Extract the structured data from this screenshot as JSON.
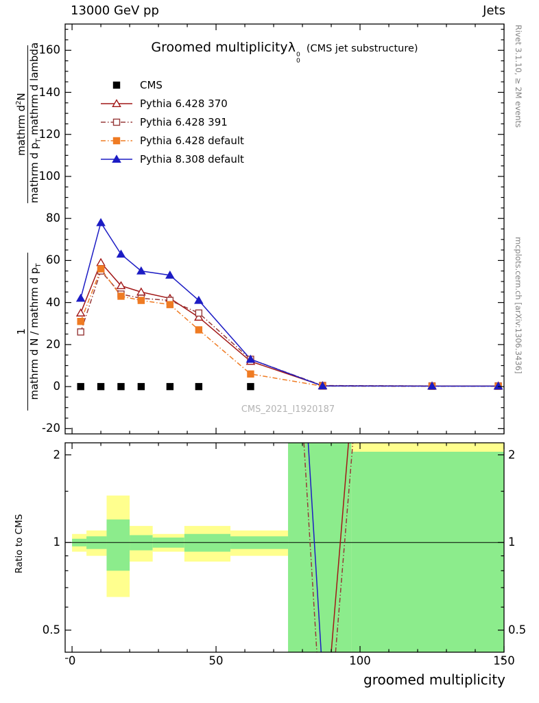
{
  "header": {
    "left": "13000 GeV pp",
    "right": "Jets"
  },
  "title": {
    "text": "Groomed multiplicity",
    "lambda": "λ",
    "sub": "0",
    "sup": "0",
    "suffix": "(CMS jet substructure)"
  },
  "watermark": "CMS_2021_I1920187",
  "side": {
    "top": "Rivet 3.1.10, ≥ 2M events",
    "bottom": "mcplots.cern.ch [arXiv:1306.3436]"
  },
  "ylabel": {
    "f2_num_a": "mathrm d",
    "f2_num_sup": "2",
    "f2_num_b": "N",
    "f2_den_a": "mathrm d p",
    "f2_den_sub": "T",
    "f2_den_b": " mathrm d lambda",
    "f1_num": "1",
    "f1_den_a": "mathrm d N / mathrm d p",
    "f1_den_sub": "T"
  },
  "ratio_label": "Ratio to CMS",
  "xlabel": "groomed multiplicity",
  "chart_data": {
    "type": "line",
    "title": "Groomed multiplicity λ_0^0 (CMS jet substructure)",
    "xlabel": "groomed multiplicity",
    "ylabel": "1/(dN/dp_T) d²N/(dp_T dλ)",
    "xlim": [
      -2.4,
      150
    ],
    "main": {
      "ylim": [
        -22.5,
        172.5
      ],
      "yticks": [
        -20,
        0,
        20,
        40,
        60,
        80,
        100,
        120,
        140,
        160
      ],
      "xticks": [
        0,
        50,
        100,
        150
      ],
      "x_minor_step": 10,
      "y_minor_step": 5,
      "grid": false
    },
    "series": [
      {
        "key": "cms",
        "label": "CMS",
        "color": "#000000",
        "marker": "square",
        "filled": true,
        "line": "none",
        "x": [
          3,
          10,
          17,
          24,
          34,
          44,
          62
        ],
        "y": [
          0,
          0,
          0,
          0,
          0,
          0,
          0
        ]
      },
      {
        "key": "p370",
        "label": "Pythia 6.428 370",
        "color": "#a11616",
        "marker": "triangle",
        "filled": false,
        "line": "solid",
        "x": [
          3,
          10,
          17,
          24,
          34,
          44,
          62,
          87,
          125,
          148
        ],
        "y": [
          35,
          59,
          48,
          45,
          42,
          33,
          12,
          0.4,
          0.3,
          0.3
        ]
      },
      {
        "key": "p391",
        "label": "Pythia 6.428 391",
        "color": "#963838",
        "marker": "square",
        "filled": false,
        "line": "dashdot",
        "x": [
          3,
          10,
          17,
          24,
          34,
          44,
          62,
          87,
          125,
          148
        ],
        "y": [
          26,
          55,
          44,
          42,
          41,
          35,
          13,
          0.5,
          0.3,
          0.3
        ]
      },
      {
        "key": "p6def",
        "label": "Pythia 6.428 default",
        "color": "#ef7b23",
        "marker": "square",
        "filled": true,
        "line": "dashdot",
        "x": [
          3,
          10,
          17,
          24,
          34,
          44,
          62,
          87,
          125,
          148
        ],
        "y": [
          31,
          56,
          43,
          41,
          39,
          27,
          6,
          0.2,
          0.1,
          0.1
        ]
      },
      {
        "key": "p8def",
        "label": "Pythia 8.308 default",
        "color": "#1c1cc4",
        "marker": "triangle",
        "filled": true,
        "line": "solid",
        "x": [
          3,
          10,
          17,
          24,
          34,
          44,
          62,
          87,
          125,
          148
        ],
        "y": [
          42,
          78,
          63,
          55,
          53,
          41,
          13,
          0.3,
          0.2,
          0.2
        ]
      }
    ],
    "ratio": {
      "ylim_log": [
        0.42,
        2.2
      ],
      "yticks": [
        0.5,
        1,
        2
      ],
      "y_minor": [
        0.4,
        0.6,
        0.7,
        0.8,
        0.9,
        1.5
      ],
      "reference": 1,
      "bands": [
        {
          "x0": 0,
          "x1": 5,
          "green": [
            0.97,
            1.03
          ],
          "yellow": [
            0.93,
            1.07
          ]
        },
        {
          "x0": 5,
          "x1": 12,
          "green": [
            0.95,
            1.05
          ],
          "yellow": [
            0.9,
            1.1
          ]
        },
        {
          "x0": 12,
          "x1": 20,
          "green": [
            0.8,
            1.2
          ],
          "yellow": [
            0.65,
            1.45
          ]
        },
        {
          "x0": 20,
          "x1": 28,
          "green": [
            0.94,
            1.06
          ],
          "yellow": [
            0.86,
            1.14
          ]
        },
        {
          "x0": 28,
          "x1": 39,
          "green": [
            0.96,
            1.04
          ],
          "yellow": [
            0.93,
            1.07
          ]
        },
        {
          "x0": 39,
          "x1": 55,
          "green": [
            0.93,
            1.07
          ],
          "yellow": [
            0.86,
            1.14
          ]
        },
        {
          "x0": 55,
          "x1": 75,
          "green": [
            0.95,
            1.05
          ],
          "yellow": [
            0.9,
            1.1
          ]
        },
        {
          "x0": 75,
          "x1": 97,
          "green": [
            0.42,
            2.2
          ],
          "yellow": null
        },
        {
          "x0": 97,
          "x1": 150,
          "green": [
            0.42,
            2.05
          ],
          "yellow": [
            0.42,
            2.2
          ]
        }
      ],
      "lines": [
        {
          "color": "#963838",
          "style": "dashdot",
          "pts": [
            [
              80.5,
              2.2
            ],
            [
              85.0,
              0.42
            ]
          ]
        },
        {
          "color": "#1c1cc4",
          "style": "solid",
          "pts": [
            [
              82.0,
              2.2
            ],
            [
              86.5,
              0.42
            ]
          ]
        },
        {
          "color": "#a11616",
          "style": "solid",
          "pts": [
            [
              90.0,
              0.42
            ],
            [
              96.0,
              2.2
            ]
          ]
        },
        {
          "color": "#963838",
          "style": "dashdot",
          "pts": [
            [
              91.5,
              0.42
            ],
            [
              97.5,
              2.2
            ]
          ]
        }
      ]
    },
    "colors": {
      "band_yellow": "#ffff8e",
      "band_green": "#8cec8c",
      "frame": "#000000"
    }
  }
}
